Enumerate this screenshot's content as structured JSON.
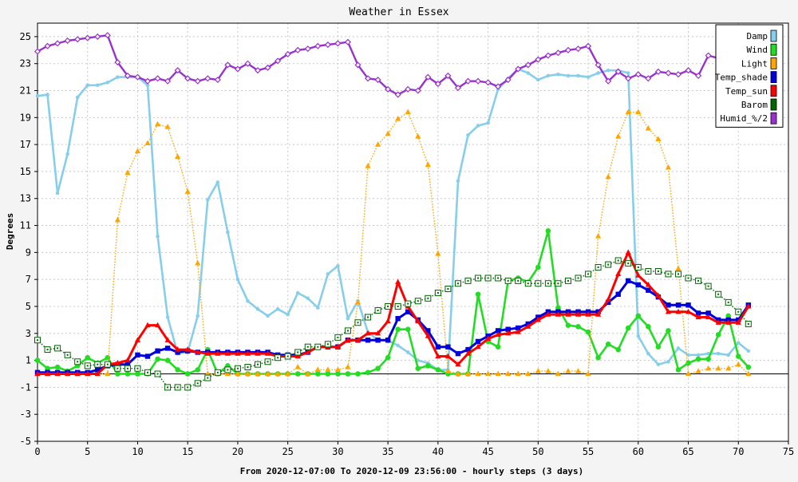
{
  "chart_data": {
    "type": "line",
    "title": "Weather in Essex",
    "xlabel": "From 2020-12-07:00 To 2020-12-09 23:56:00 - hourly steps (3 days)",
    "ylabel": "Degrees",
    "xlim": [
      0,
      75
    ],
    "ylim": [
      -5,
      26
    ],
    "x_ticks": [
      0,
      5,
      10,
      15,
      20,
      25,
      30,
      35,
      40,
      45,
      50,
      55,
      60,
      65,
      70,
      75
    ],
    "y_ticks": [
      -5,
      -3,
      -1,
      1,
      3,
      5,
      7,
      9,
      11,
      13,
      15,
      17,
      19,
      21,
      23,
      25
    ],
    "grid": true,
    "legend_position": "top-right",
    "x": [
      0,
      1,
      2,
      3,
      4,
      5,
      6,
      7,
      8,
      9,
      10,
      11,
      12,
      13,
      14,
      15,
      16,
      17,
      18,
      19,
      20,
      21,
      22,
      23,
      24,
      25,
      26,
      27,
      28,
      29,
      30,
      31,
      32,
      33,
      34,
      35,
      36,
      37,
      38,
      39,
      40,
      41,
      42,
      43,
      44,
      45,
      46,
      47,
      48,
      49,
      50,
      51,
      52,
      53,
      54,
      55,
      56,
      57,
      58,
      59,
      60,
      61,
      62,
      63,
      64,
      65,
      66,
      67,
      68,
      69,
      70,
      71
    ],
    "series": [
      {
        "name": "Damp",
        "color": "#87ceeb",
        "style": "solid",
        "marker": "dot",
        "values": [
          20.6,
          20.7,
          13.4,
          16.3,
          20.5,
          21.4,
          21.4,
          21.6,
          22.0,
          22.0,
          22.0,
          21.4,
          10.2,
          4.2,
          1.5,
          1.6,
          4.3,
          12.9,
          14.2,
          10.5,
          7.0,
          5.4,
          4.8,
          4.3,
          4.8,
          4.4,
          6.0,
          5.6,
          4.9,
          7.4,
          8.0,
          4.1,
          5.4,
          3.1,
          2.5,
          2.5,
          2.1,
          1.6,
          1.0,
          0.8,
          0.3,
          0.3,
          14.3,
          17.7,
          18.4,
          18.6,
          21.1,
          21.9,
          22.6,
          22.3,
          21.8,
          22.1,
          22.2,
          22.1,
          22.1,
          22.0,
          22.3,
          22.5,
          22.5,
          22.3,
          2.8,
          1.5,
          0.7,
          0.9,
          1.9,
          1.4,
          1.4,
          1.5,
          1.5,
          1.4,
          2.3,
          1.7
        ]
      },
      {
        "name": "Wind",
        "color": "#22dd22",
        "style": "solid",
        "marker": "circle",
        "values": [
          1.0,
          0.4,
          0.5,
          0.2,
          0.6,
          1.2,
          0.8,
          1.2,
          0.0,
          0.0,
          0.0,
          0.0,
          1.1,
          1.0,
          0.3,
          0.0,
          0.3,
          1.8,
          0.0,
          0.6,
          0.0,
          0.0,
          0.0,
          0.0,
          0.0,
          0.0,
          0.0,
          0.0,
          0.0,
          0.0,
          0.0,
          0.0,
          0.0,
          0.1,
          0.4,
          1.2,
          3.3,
          3.3,
          0.4,
          0.6,
          0.3,
          0.0,
          0.0,
          0.0,
          5.9,
          2.4,
          2.0,
          6.9,
          7.1,
          6.8,
          7.9,
          10.6,
          4.9,
          3.6,
          3.5,
          3.1,
          1.2,
          2.2,
          1.8,
          3.4,
          4.3,
          3.5,
          2.0,
          3.2,
          0.3,
          0.8,
          1.1,
          1.1,
          2.9,
          4.3,
          1.3,
          0.5
        ]
      },
      {
        "name": "Light",
        "color": "#ffa500",
        "style": "dotted",
        "marker": "triangle",
        "values": [
          0.0,
          0.0,
          0.0,
          0.0,
          0.0,
          0.0,
          0.0,
          0.0,
          11.4,
          14.9,
          16.5,
          17.1,
          18.5,
          18.3,
          16.1,
          13.5,
          8.2,
          0.0,
          0.0,
          0.0,
          0.0,
          0.0,
          0.0,
          0.0,
          0.0,
          0.0,
          0.5,
          0.0,
          0.3,
          0.3,
          0.3,
          0.5,
          5.3,
          15.4,
          17.0,
          17.8,
          18.9,
          19.4,
          17.6,
          15.5,
          8.9,
          0.2,
          0.0,
          0.0,
          0.0,
          0.0,
          0.0,
          0.0,
          0.0,
          0.0,
          0.2,
          0.2,
          0.0,
          0.2,
          0.2,
          0.0,
          10.2,
          14.6,
          17.6,
          19.4,
          19.4,
          18.2,
          17.4,
          15.3,
          7.8,
          0.0,
          0.2,
          0.4,
          0.4,
          0.4,
          0.7,
          0.0
        ]
      },
      {
        "name": "Temp_shade",
        "color": "#0000dd",
        "style": "solid",
        "marker": "square",
        "values": [
          0.1,
          0.1,
          0.1,
          0.1,
          0.1,
          0.1,
          0.3,
          0.6,
          0.7,
          0.7,
          1.4,
          1.3,
          1.7,
          1.9,
          1.6,
          1.7,
          1.6,
          1.6,
          1.6,
          1.6,
          1.6,
          1.6,
          1.6,
          1.6,
          1.4,
          1.4,
          1.4,
          1.6,
          2.0,
          2.0,
          2.0,
          2.5,
          2.5,
          2.5,
          2.5,
          2.5,
          4.1,
          4.6,
          4.0,
          3.2,
          2.0,
          2.0,
          1.5,
          1.8,
          2.4,
          2.8,
          3.2,
          3.3,
          3.4,
          3.7,
          4.2,
          4.6,
          4.6,
          4.6,
          4.6,
          4.6,
          4.6,
          5.3,
          5.9,
          6.9,
          6.6,
          6.2,
          5.7,
          5.1,
          5.1,
          5.1,
          4.5,
          4.5,
          4.0,
          4.0,
          4.0,
          5.1
        ]
      },
      {
        "name": "Temp_sun",
        "color": "#ff0000",
        "style": "solid",
        "marker": "triangle",
        "values": [
          0.0,
          0.0,
          0.0,
          0.0,
          0.0,
          0.0,
          0.0,
          0.7,
          0.8,
          1.0,
          2.5,
          3.6,
          3.6,
          2.5,
          1.8,
          1.8,
          1.6,
          1.5,
          1.5,
          1.5,
          1.5,
          1.5,
          1.5,
          1.5,
          1.3,
          1.3,
          1.3,
          1.6,
          2.0,
          2.0,
          2.0,
          2.5,
          2.5,
          3.0,
          3.0,
          3.9,
          6.8,
          5.0,
          3.9,
          2.8,
          1.3,
          1.3,
          0.7,
          1.5,
          2.0,
          2.6,
          2.9,
          3.0,
          3.1,
          3.5,
          4.0,
          4.4,
          4.4,
          4.4,
          4.4,
          4.4,
          4.4,
          5.5,
          7.4,
          9.0,
          7.3,
          6.6,
          5.8,
          4.6,
          4.6,
          4.6,
          4.2,
          4.2,
          3.8,
          3.8,
          3.8,
          5.0
        ]
      },
      {
        "name": "Barom",
        "color": "#006400",
        "style": "dotted",
        "marker": "hollow-square",
        "values": [
          2.5,
          1.8,
          1.9,
          1.4,
          0.9,
          0.6,
          0.7,
          0.7,
          0.4,
          0.4,
          0.4,
          0.1,
          0.0,
          -1.0,
          -1.0,
          -1.0,
          -0.7,
          -0.3,
          0.1,
          0.3,
          0.4,
          0.5,
          0.7,
          0.9,
          1.2,
          1.3,
          1.6,
          2.0,
          2.0,
          2.2,
          2.7,
          3.2,
          3.8,
          4.2,
          4.7,
          5.0,
          5.0,
          5.2,
          5.4,
          5.6,
          6.0,
          6.3,
          6.7,
          6.9,
          7.1,
          7.1,
          7.1,
          6.9,
          6.9,
          6.7,
          6.7,
          6.7,
          6.7,
          6.9,
          7.1,
          7.4,
          7.9,
          8.1,
          8.4,
          8.2,
          7.9,
          7.6,
          7.6,
          7.4,
          7.4,
          7.1,
          6.9,
          6.5,
          5.9,
          5.3,
          4.6,
          3.7
        ]
      },
      {
        "name": "Humid_%/2",
        "color": "#9932cc",
        "style": "solid",
        "marker": "diamond",
        "values": [
          23.9,
          24.3,
          24.5,
          24.7,
          24.8,
          24.9,
          25.0,
          25.1,
          23.1,
          22.1,
          22.0,
          21.7,
          21.9,
          21.7,
          22.5,
          21.9,
          21.7,
          21.9,
          21.8,
          22.9,
          22.6,
          23.0,
          22.5,
          22.7,
          23.2,
          23.7,
          24.0,
          24.1,
          24.3,
          24.4,
          24.5,
          24.6,
          22.9,
          21.9,
          21.8,
          21.1,
          20.7,
          21.1,
          21.0,
          22.0,
          21.5,
          22.1,
          21.2,
          21.7,
          21.7,
          21.6,
          21.3,
          21.8,
          22.6,
          22.9,
          23.3,
          23.6,
          23.8,
          24.0,
          24.1,
          24.3,
          22.9,
          21.7,
          22.4,
          21.9,
          22.2,
          21.9,
          22.4,
          22.3,
          22.2,
          22.5,
          22.1,
          23.6,
          23.4,
          23.1,
          23.3,
          24.2
        ]
      }
    ]
  }
}
